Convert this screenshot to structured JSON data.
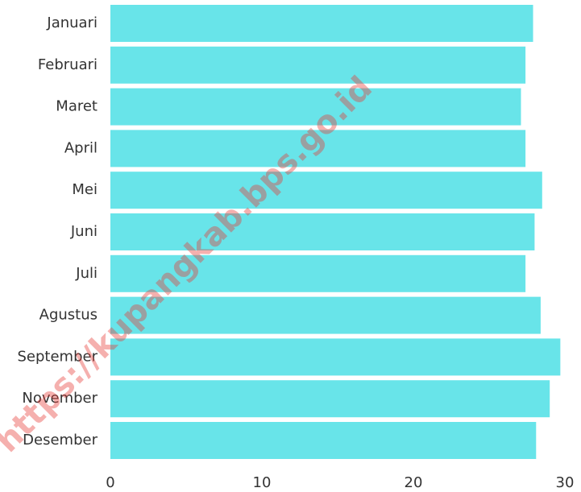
{
  "chart_data": {
    "type": "barh",
    "categories": [
      "Januari",
      "Februari",
      "Maret",
      "April",
      "Mei",
      "Juni",
      "Juli",
      "Agustus",
      "September",
      "November",
      "Desember"
    ],
    "values": [
      27.9,
      27.4,
      27.1,
      27.4,
      28.5,
      28.0,
      27.4,
      28.4,
      29.7,
      29.0,
      28.1
    ],
    "color": "#68e4e9",
    "xlim": [
      0,
      30
    ],
    "xticks": [
      0,
      10,
      20,
      30
    ],
    "grid": false,
    "watermark": "https://kupangkab.bps.go.id"
  }
}
